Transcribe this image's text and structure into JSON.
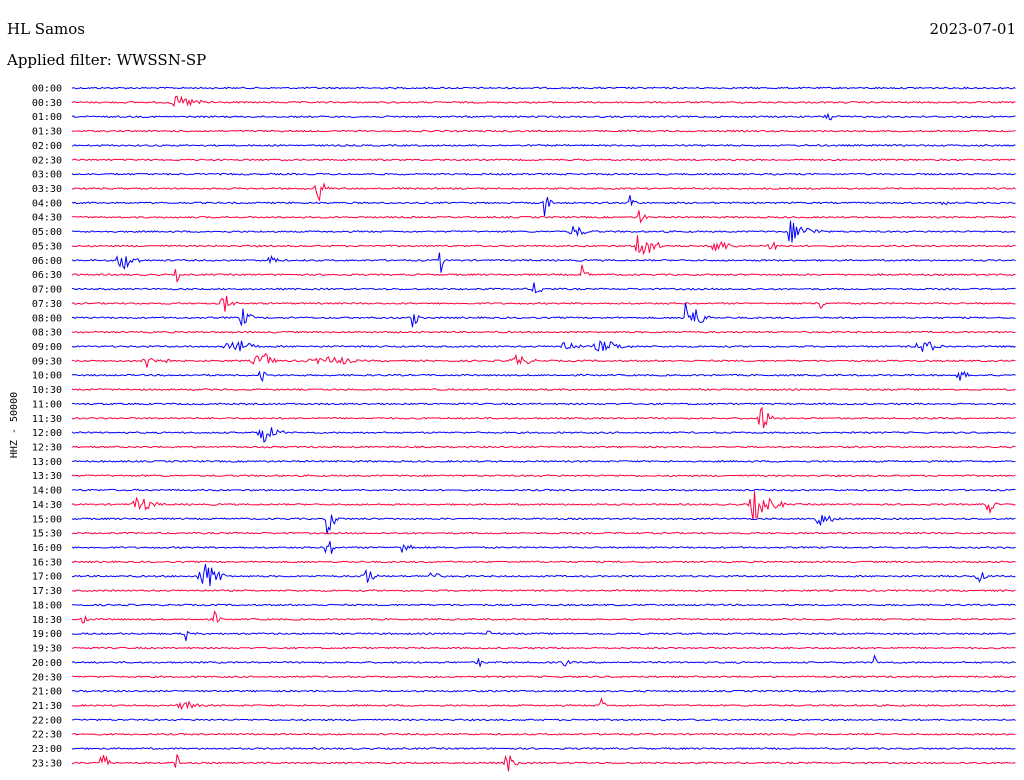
{
  "header": {
    "station": "HL Samos",
    "date": "2023-07-01",
    "filter": "Applied filter: WWSSN-SP"
  },
  "chart_data": {
    "type": "line",
    "ylabel": "HHZ - 50000",
    "colors": [
      "#0000ff",
      "#ff0040"
    ],
    "rows": [
      "00:00",
      "00:30",
      "01:00",
      "01:30",
      "02:00",
      "02:30",
      "03:00",
      "03:30",
      "04:00",
      "04:30",
      "05:00",
      "05:30",
      "06:00",
      "06:30",
      "07:00",
      "07:30",
      "08:00",
      "08:30",
      "09:00",
      "09:30",
      "10:00",
      "10:30",
      "11:00",
      "11:30",
      "12:00",
      "12:30",
      "13:00",
      "13:30",
      "14:00",
      "14:30",
      "15:00",
      "15:30",
      "16:00",
      "16:30",
      "17:00",
      "17:30",
      "18:00",
      "18:30",
      "19:00",
      "19:30",
      "20:00",
      "20:30",
      "21:00",
      "21:30",
      "22:00",
      "22:30",
      "23:00",
      "23:30"
    ],
    "events": [
      [
        1,
        0.11,
        20,
        6,
        40
      ],
      [
        2,
        0.8,
        10,
        6,
        10
      ],
      [
        7,
        0.26,
        10,
        12,
        10
      ],
      [
        8,
        0.5,
        6,
        14,
        6
      ],
      [
        8,
        0.59,
        6,
        10,
        6
      ],
      [
        8,
        0.92,
        6,
        10,
        6
      ],
      [
        9,
        0.6,
        6,
        10,
        6
      ],
      [
        10,
        0.53,
        15,
        6,
        20
      ],
      [
        10,
        0.76,
        10,
        12,
        30
      ],
      [
        11,
        0.6,
        10,
        18,
        20
      ],
      [
        11,
        0.68,
        15,
        8,
        20
      ],
      [
        11,
        0.74,
        10,
        8,
        10
      ],
      [
        12,
        0.05,
        10,
        12,
        20
      ],
      [
        12,
        0.21,
        6,
        10,
        6
      ],
      [
        12,
        0.39,
        4,
        14,
        4
      ],
      [
        13,
        0.11,
        4,
        8,
        4
      ],
      [
        13,
        0.54,
        6,
        10,
        6
      ],
      [
        14,
        0.49,
        8,
        8,
        10
      ],
      [
        15,
        0.16,
        10,
        10,
        10
      ],
      [
        15,
        0.79,
        10,
        8,
        6
      ],
      [
        16,
        0.18,
        10,
        10,
        10
      ],
      [
        16,
        0.36,
        6,
        12,
        6
      ],
      [
        16,
        0.65,
        10,
        20,
        20
      ],
      [
        18,
        0.17,
        30,
        8,
        20
      ],
      [
        18,
        0.52,
        10,
        6,
        20
      ],
      [
        18,
        0.56,
        30,
        6,
        30
      ],
      [
        18,
        0.9,
        30,
        6,
        20
      ],
      [
        19,
        0.08,
        20,
        8,
        20
      ],
      [
        19,
        0.2,
        30,
        8,
        10
      ],
      [
        19,
        0.27,
        80,
        4,
        20
      ],
      [
        19,
        0.47,
        20,
        6,
        20
      ],
      [
        20,
        0.2,
        6,
        8,
        6
      ],
      [
        20,
        0.94,
        10,
        6,
        10
      ],
      [
        23,
        0.73,
        10,
        14,
        10
      ],
      [
        24,
        0.2,
        10,
        12,
        20
      ],
      [
        29,
        0.07,
        20,
        8,
        20
      ],
      [
        29,
        0.72,
        10,
        16,
        30
      ],
      [
        29,
        0.97,
        6,
        12,
        6
      ],
      [
        30,
        0.27,
        6,
        16,
        10
      ],
      [
        30,
        0.79,
        10,
        8,
        20
      ],
      [
        32,
        0.27,
        6,
        16,
        6
      ],
      [
        32,
        0.35,
        10,
        8,
        10
      ],
      [
        34,
        0.14,
        20,
        14,
        20
      ],
      [
        34,
        0.31,
        10,
        10,
        10
      ],
      [
        34,
        0.38,
        10,
        6,
        10
      ],
      [
        34,
        0.96,
        10,
        6,
        10
      ],
      [
        37,
        0.01,
        6,
        8,
        6
      ],
      [
        37,
        0.15,
        6,
        8,
        6
      ],
      [
        38,
        0.12,
        4,
        8,
        4
      ],
      [
        38,
        0.44,
        4,
        6,
        4
      ],
      [
        40,
        0.43,
        4,
        8,
        4
      ],
      [
        40,
        0.52,
        6,
        6,
        6
      ],
      [
        40,
        0.85,
        4,
        8,
        4
      ],
      [
        43,
        0.12,
        30,
        5,
        10
      ],
      [
        43,
        0.56,
        4,
        8,
        4
      ],
      [
        47,
        0.03,
        4,
        14,
        10
      ],
      [
        47,
        0.11,
        4,
        10,
        4
      ],
      [
        47,
        0.46,
        10,
        10,
        10
      ]
    ]
  }
}
